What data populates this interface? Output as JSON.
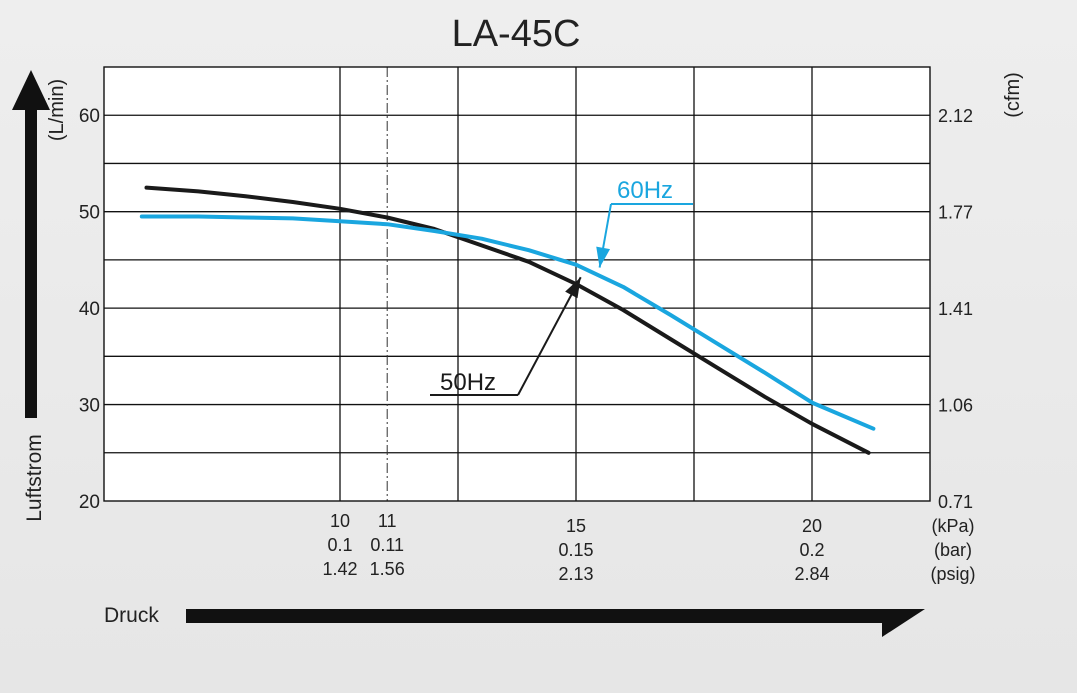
{
  "colors": {
    "series_50hz": "#1a1a1a",
    "series_60hz": "#1aa6df",
    "grid": "#111111",
    "plot_bg": "#ffffff",
    "arrow": "#111111"
  },
  "chart_data": {
    "type": "line",
    "title": "LA-45C",
    "xlabel": "Druck",
    "ylabel": "Luftstrom",
    "y_unit_left": "(L/min)",
    "y_unit_right": "(cfm)",
    "x_units": [
      "(kPa)",
      "(bar)",
      "(psig)"
    ],
    "xlim": [
      5,
      22.5
    ],
    "ylim": [
      20,
      65
    ],
    "x_gridlines": [
      10,
      12.5,
      15,
      17.5,
      20
    ],
    "x_dashdot_line": 11,
    "y_gridlines": [
      25,
      30,
      35,
      40,
      45,
      50,
      55,
      60
    ],
    "y_ticks": [
      {
        "value": 20,
        "label": "20",
        "right_label": "0.71"
      },
      {
        "value": 30,
        "label": "30",
        "right_label": "1.06"
      },
      {
        "value": 40,
        "label": "40",
        "right_label": "1.41"
      },
      {
        "value": 50,
        "label": "50",
        "right_label": "1.77"
      },
      {
        "value": 60,
        "label": "60",
        "right_label": "2.12"
      }
    ],
    "x_ticks": [
      {
        "value": 10,
        "kpa": "10",
        "bar": "0.1",
        "psig": "1.42"
      },
      {
        "value": 11,
        "kpa": "11",
        "bar": "0.11",
        "psig": "1.56"
      },
      {
        "value": 15,
        "kpa": "15",
        "bar": "0.15",
        "psig": "2.13"
      },
      {
        "value": 20,
        "kpa": "20",
        "bar": "0.2",
        "psig": "2.84"
      }
    ],
    "series": [
      {
        "name": "50Hz",
        "x": [
          5.9,
          7,
          8,
          9,
          10,
          11,
          12,
          13,
          14,
          15,
          16,
          17,
          18,
          19,
          20,
          21.2
        ],
        "values": [
          52.5,
          52.1,
          51.6,
          51.0,
          50.3,
          49.4,
          48.2,
          46.5,
          44.8,
          42.5,
          39.8,
          36.8,
          33.8,
          30.8,
          28.0,
          25.0
        ]
      },
      {
        "name": "60Hz",
        "x": [
          5.8,
          7,
          8,
          9,
          10,
          11,
          12,
          13,
          14,
          15,
          16,
          17,
          18,
          19,
          20,
          21.3
        ],
        "values": [
          49.5,
          49.5,
          49.4,
          49.3,
          49.0,
          48.7,
          48.0,
          47.2,
          46.0,
          44.5,
          42.2,
          39.3,
          36.3,
          33.3,
          30.2,
          27.5
        ]
      }
    ],
    "annotations": [
      {
        "series": "50Hz",
        "text": "50Hz",
        "point_x": 15.1,
        "point_y": 43.2
      },
      {
        "series": "60Hz",
        "text": "60Hz",
        "point_x": 15.5,
        "point_y": 44.2
      }
    ]
  }
}
